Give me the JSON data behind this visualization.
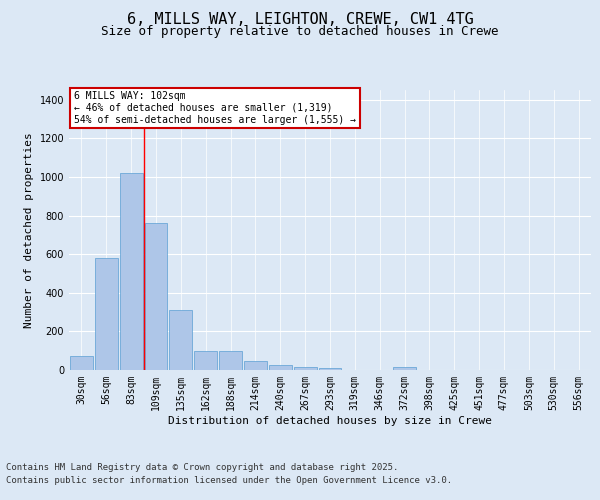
{
  "title_line1": "6, MILLS WAY, LEIGHTON, CREWE, CW1 4TG",
  "title_line2": "Size of property relative to detached houses in Crewe",
  "xlabel": "Distribution of detached houses by size in Crewe",
  "ylabel": "Number of detached properties",
  "categories": [
    "30sqm",
    "56sqm",
    "83sqm",
    "109sqm",
    "135sqm",
    "162sqm",
    "188sqm",
    "214sqm",
    "240sqm",
    "267sqm",
    "293sqm",
    "319sqm",
    "346sqm",
    "372sqm",
    "398sqm",
    "425sqm",
    "451sqm",
    "477sqm",
    "503sqm",
    "530sqm",
    "556sqm"
  ],
  "values": [
    70,
    580,
    1020,
    760,
    310,
    100,
    100,
    45,
    25,
    18,
    12,
    0,
    0,
    18,
    0,
    0,
    0,
    0,
    0,
    0,
    0
  ],
  "bar_color": "#aec6e8",
  "bar_edge_color": "#5a9fd4",
  "redline_x": 2.5,
  "annotation_text": "6 MILLS WAY: 102sqm\n← 46% of detached houses are smaller (1,319)\n54% of semi-detached houses are larger (1,555) →",
  "annotation_box_color": "#ffffff",
  "annotation_box_edge": "#cc0000",
  "ylim": [
    0,
    1450
  ],
  "yticks": [
    0,
    200,
    400,
    600,
    800,
    1000,
    1200,
    1400
  ],
  "bg_color": "#dce8f5",
  "plot_bg_color": "#dce8f5",
  "footer_line1": "Contains HM Land Registry data © Crown copyright and database right 2025.",
  "footer_line2": "Contains public sector information licensed under the Open Government Licence v3.0.",
  "title_fontsize": 11,
  "subtitle_fontsize": 9,
  "annotation_fontsize": 7,
  "footer_fontsize": 6.5,
  "tick_fontsize": 7,
  "axis_label_fontsize": 8
}
